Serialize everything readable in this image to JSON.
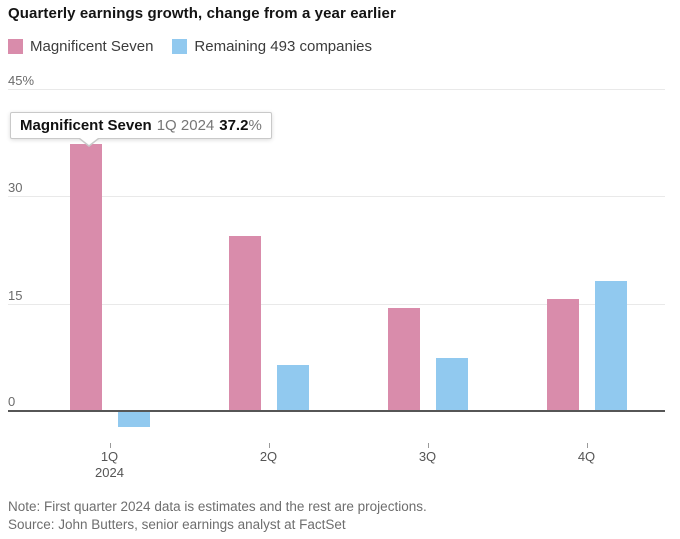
{
  "title": "Quarterly earnings growth, change from a year earlier",
  "legend": {
    "items": [
      {
        "label": "Magnificent Seven",
        "color": "#d98cab"
      },
      {
        "label": "Remaining 493 companies",
        "color": "#91c9ef"
      }
    ]
  },
  "chart_data": {
    "type": "bar",
    "title": "Quarterly earnings growth, change from a year earlier",
    "categories": [
      "1Q",
      "2Q",
      "3Q",
      "4Q"
    ],
    "x_axis_sublabel": "2024",
    "series": [
      {
        "name": "Magnificent Seven",
        "color": "#d98cab",
        "values": [
          37.2,
          24.3,
          14.3,
          15.5
        ]
      },
      {
        "name": "Remaining 493 companies",
        "color": "#91c9ef",
        "values": [
          -2.4,
          6.3,
          7.2,
          18.0
        ]
      }
    ],
    "yticks": [
      {
        "value": 45,
        "label": "45%"
      },
      {
        "value": 30,
        "label": "30"
      },
      {
        "value": 15,
        "label": "15"
      },
      {
        "value": 0,
        "label": "0"
      }
    ],
    "ylim": [
      -5,
      45
    ],
    "unit": "percent",
    "grid": true,
    "legend_position": "top"
  },
  "tooltip": {
    "series": "Magnificent Seven",
    "period": "1Q 2024",
    "value": "37.2",
    "unit": "%"
  },
  "note": "Note: First quarter 2024 data is estimates and the rest are projections.",
  "source": "Source: John Butters, senior earnings analyst at FactSet"
}
